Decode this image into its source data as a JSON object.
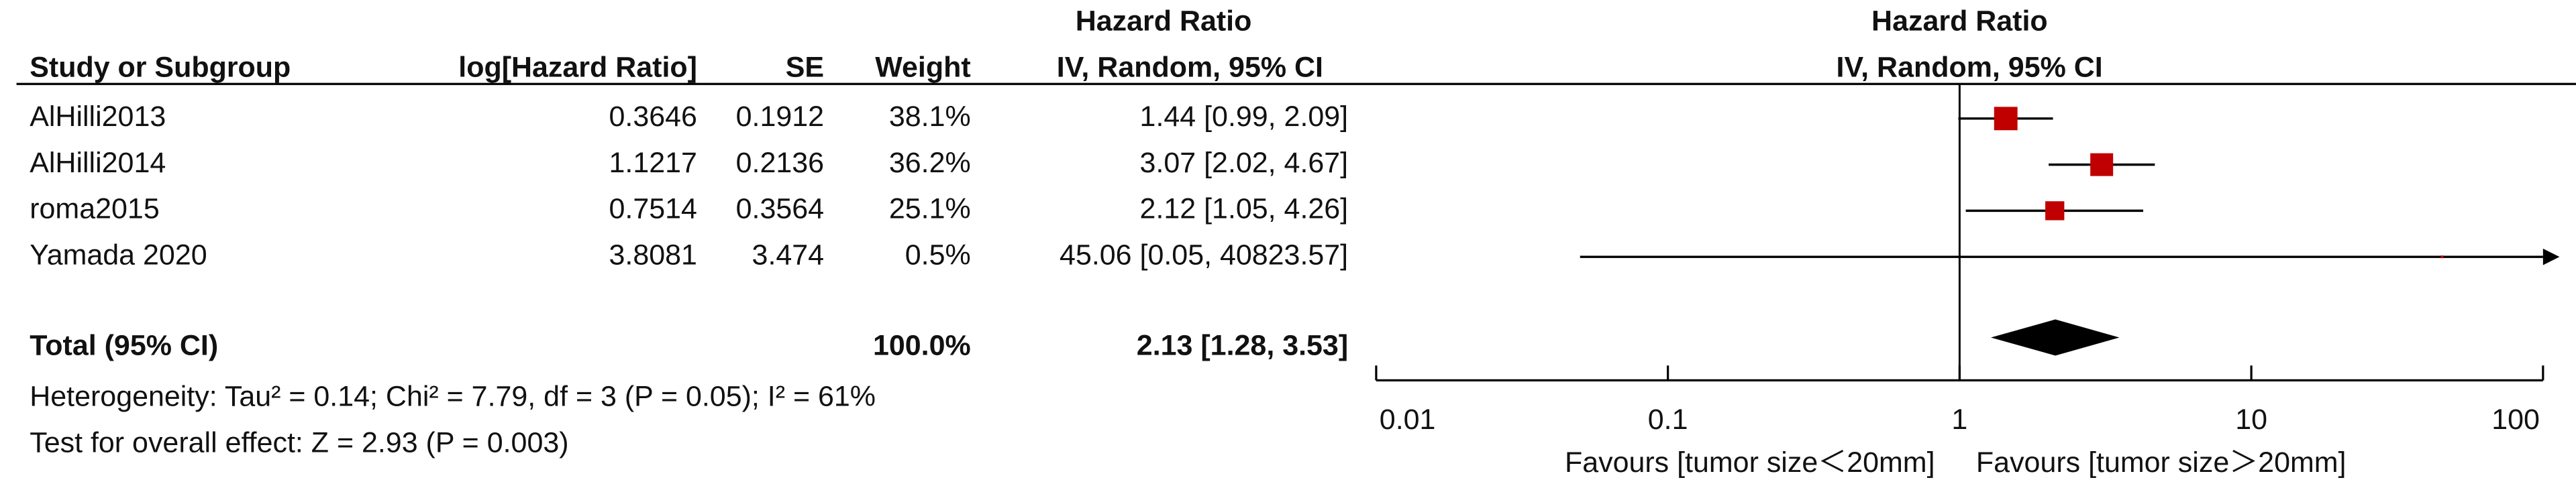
{
  "chart_data": {
    "type": "forest",
    "columns": [
      "Study or Subgroup",
      "log[Hazard Ratio]",
      "SE",
      "Weight"
    ],
    "estimate_header": [
      "Hazard Ratio",
      "IV, Random, 95% CI"
    ],
    "plot_header": [
      "Hazard Ratio",
      "IV, Random, 95% CI"
    ],
    "studies": [
      {
        "name": "AlHilli2013",
        "log_hr": 0.3646,
        "se": 0.1912,
        "weight": 38.1,
        "weight_label": "38.1%",
        "hr": 1.44,
        "ci_low": 0.99,
        "ci_high": 2.09,
        "estimate_label": "1.44 [0.99, 2.09]"
      },
      {
        "name": "AlHilli2014",
        "log_hr": 1.1217,
        "se": 0.2136,
        "weight": 36.2,
        "weight_label": "36.2%",
        "hr": 3.07,
        "ci_low": 2.02,
        "ci_high": 4.67,
        "estimate_label": "3.07 [2.02, 4.67]"
      },
      {
        "name": "roma2015",
        "log_hr": 0.7514,
        "se": 0.3564,
        "weight": 25.1,
        "weight_label": "25.1%",
        "hr": 2.12,
        "ci_low": 1.05,
        "ci_high": 4.26,
        "estimate_label": "2.12 [1.05, 4.26]"
      },
      {
        "name": "Yamada 2020",
        "log_hr": 3.8081,
        "se": 3.474,
        "weight": 0.5,
        "weight_label": "0.5%",
        "hr": 45.06,
        "ci_low": 0.05,
        "ci_high": 40823.57,
        "estimate_label": "45.06 [0.05, 40823.57]"
      }
    ],
    "total": {
      "name": "Total (95% CI)",
      "weight": 100.0,
      "weight_label": "100.0%",
      "hr": 2.13,
      "ci_low": 1.28,
      "ci_high": 3.53,
      "estimate_label": "2.13 [1.28, 3.53]"
    },
    "heterogeneity": "Heterogeneity: Tau² = 0.14; Chi² = 7.79, df = 3 (P = 0.05); I² = 61%",
    "overall_effect": "Test for overall effect: Z = 2.93 (P = 0.003)",
    "log_scale": true,
    "xlim": [
      0.01,
      100
    ],
    "xticks": [
      0.01,
      0.1,
      1,
      10,
      100
    ],
    "x_label_left": "Favours [tumor size＜20mm]",
    "x_label_right": "Favours [tumor size＞20mm]",
    "marker_color": "#c00000",
    "line_color": "#000000"
  }
}
